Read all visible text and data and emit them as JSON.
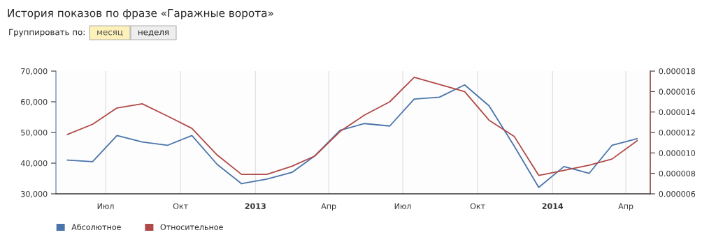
{
  "chart_data": {
    "type": "line",
    "title": "История показов по фразе «Гаражные ворота»",
    "annotations": [
      "Группировать по:",
      "месяц",
      "неделя"
    ],
    "x": [
      "2012-05-15",
      "2012-06-15",
      "2012-07-15",
      "2012-08-15",
      "2012-09-15",
      "2012-10-15",
      "2012-11-15",
      "2012-12-15",
      "2013-01-15",
      "2013-02-15",
      "2013-03-15",
      "2013-04-15",
      "2013-05-15",
      "2013-06-15",
      "2013-07-15",
      "2013-08-15",
      "2013-09-15",
      "2013-10-15",
      "2013-11-15",
      "2013-12-15",
      "2014-01-15",
      "2014-02-15",
      "2014-03-15",
      "2014-04-15"
    ],
    "series": [
      {
        "name": "Абсолютное",
        "color": "#4a74ab",
        "values": [
          41000,
          40500,
          49000,
          46900,
          45800,
          49000,
          39600,
          33300,
          34800,
          37000,
          42400,
          50700,
          52900,
          52100,
          60900,
          61500,
          65500,
          58700,
          45500,
          32100,
          38900,
          36700,
          45800,
          48000
        ]
      },
      {
        "name": "Относительное",
        "color": "#b04a48",
        "axis": "y2",
        "values": [
          1.18e-05,
          1.28e-05,
          1.44e-05,
          1.48e-05,
          1.36e-05,
          1.24e-05,
          9.8e-06,
          7.9e-06,
          7.9e-06,
          8.7e-06,
          9.7e-06,
          1.21e-05,
          1.37e-05,
          1.5e-05,
          1.74e-05,
          1.67e-05,
          1.6e-05,
          1.32e-05,
          1.16e-05,
          7.8e-06,
          8.3e-06,
          8.8e-06,
          9.4e-06,
          1.12e-05
        ]
      }
    ],
    "xlim": [
      "2012-05-01",
      "2014-05-01"
    ],
    "xticks": [
      {
        "value": "2012-07-01",
        "label": "Июл"
      },
      {
        "value": "2012-10-01",
        "label": "Окт"
      },
      {
        "value": "2013-01-01",
        "label": "2013"
      },
      {
        "value": "2013-04-01",
        "label": "Апр"
      },
      {
        "value": "2013-07-01",
        "label": "Июл"
      },
      {
        "value": "2013-10-01",
        "label": "Окт"
      },
      {
        "value": "2014-01-01",
        "label": "2014"
      },
      {
        "value": "2014-04-01",
        "label": "Апр"
      }
    ],
    "ylim": [
      30000,
      70000
    ],
    "yticks": [
      {
        "value": 30000,
        "label": "30,000"
      },
      {
        "value": 40000,
        "label": "40,000"
      },
      {
        "value": 50000,
        "label": "50,000"
      },
      {
        "value": 60000,
        "label": "60,000"
      },
      {
        "value": 70000,
        "label": "70,000"
      }
    ],
    "y2lim": [
      6e-06,
      1.8e-05
    ],
    "y2ticks": [
      {
        "value": 6e-06,
        "label": "0.000006"
      },
      {
        "value": 8e-06,
        "label": "0.000008"
      },
      {
        "value": 1e-05,
        "label": "0.000010"
      },
      {
        "value": 1.2e-05,
        "label": "0.000012"
      },
      {
        "value": 1.4e-05,
        "label": "0.000014"
      },
      {
        "value": 1.6e-05,
        "label": "0.000016"
      },
      {
        "value": 1.8e-05,
        "label": "0.000018"
      }
    ],
    "grid": "x",
    "legend": "bottom left",
    "marker": "none",
    "line_style": "solid"
  }
}
